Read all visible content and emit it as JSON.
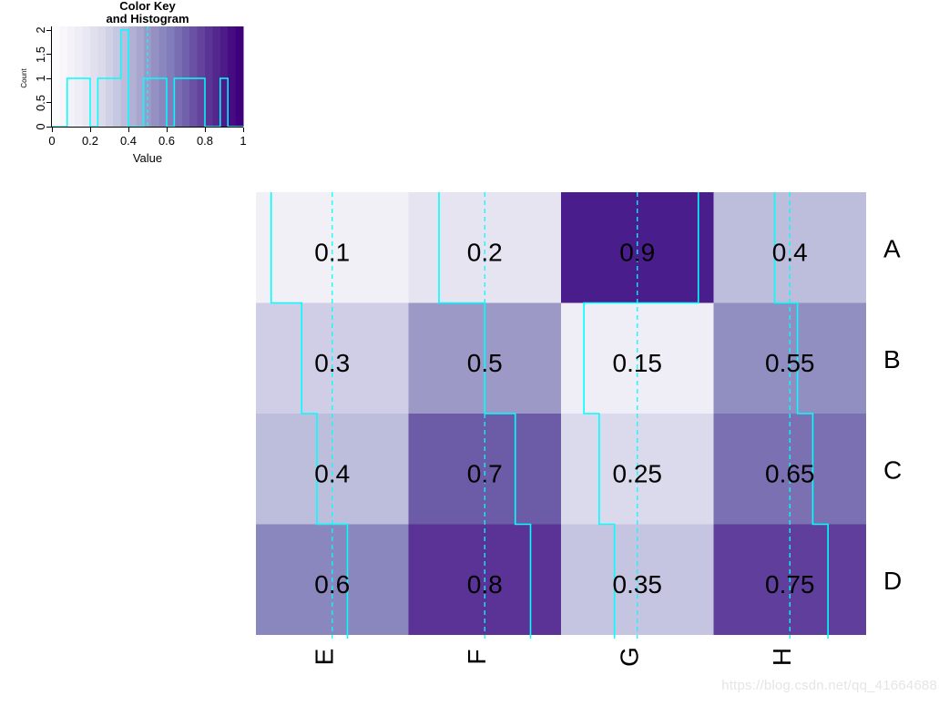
{
  "watermark": {
    "text": "https://blog.csdn.net/qq_41664688",
    "color": "#e5e5e7"
  },
  "color_key": {
    "title_line1": "Color Key",
    "title_line2": "and Histogram",
    "xlabel": "Value",
    "ylabel": "Count",
    "x_tick_labels": [
      "0",
      "0.2",
      "0.4",
      "0.6",
      "0.8",
      "1"
    ],
    "x_tick_values": [
      0,
      0.2,
      0.4,
      0.6,
      0.8,
      1
    ],
    "y_tick_labels": [
      "0",
      "0.5",
      "1",
      "1.5",
      "2"
    ],
    "y_tick_values": [
      0,
      0.5,
      1,
      1.5,
      2
    ],
    "axis_color": "#000000",
    "trace_color": "#00ffff",
    "vline_value": 0.5,
    "n_gradient_bands": 25,
    "palette_anchors": [
      "#FCFBFD",
      "#EFEDF5",
      "#DADAEB",
      "#BCBDDC",
      "#9E9AC8",
      "#807DBA",
      "#6A51A3",
      "#54278F",
      "#3F007D"
    ]
  },
  "heatmap": {
    "row_labels": [
      "A",
      "B",
      "C",
      "D"
    ],
    "col_labels": [
      "E",
      "F",
      "G",
      "H"
    ],
    "cell_labels": [
      [
        "0.1",
        "0.2",
        "0.9",
        "0.4"
      ],
      [
        "0.3",
        "0.5",
        "0.15",
        "0.55"
      ],
      [
        "0.4",
        "0.7",
        "0.25",
        "0.65"
      ],
      [
        "0.6",
        "0.8",
        "0.35",
        "0.75"
      ]
    ],
    "value_colors": {
      "0.1": "#F2F0F7",
      "0.15": "#EFEDF5",
      "0.2": "#E6E4F1",
      "0.25": "#DBDAEC",
      "0.3": "#CFCEE6",
      "0.35": "#C6C5E1",
      "0.4": "#BDBDDC",
      "0.5": "#9C99C7",
      "0.55": "#918EC2",
      "0.6": "#8A86BE",
      "0.65": "#7B70B1",
      "0.7": "#6C5BA7",
      "0.75": "#5F3F9B",
      "0.8": "#5B3295",
      "0.9": "#4A1D8C"
    },
    "label_color": "#000000",
    "trace_color": "#00ffff",
    "vline_value": 0.5
  },
  "chart_data": [
    {
      "type": "heatmap",
      "rows": [
        "A",
        "B",
        "C",
        "D"
      ],
      "columns": [
        "E",
        "F",
        "G",
        "H"
      ],
      "values": [
        [
          0.1,
          0.2,
          0.9,
          0.4
        ],
        [
          0.3,
          0.5,
          0.15,
          0.55
        ],
        [
          0.4,
          0.7,
          0.25,
          0.65
        ],
        [
          0.6,
          0.8,
          0.35,
          0.75
        ]
      ],
      "value_range": [
        0,
        1
      ],
      "colormap": "Purples light-to-dark (RColorBrewer)",
      "annotations": "each cell prints its numeric value in black",
      "trace": "solid cyan column trace drawn at x = value within each cell, stepped between rows",
      "vline": "dashed cyan vertical line at 0.5 of each column width",
      "row_labels_position": "right",
      "col_labels_position": "bottom, rotated 90deg counterclockwise"
    },
    {
      "type": "histogram",
      "title": "Color Key and Histogram",
      "xlabel": "Value",
      "ylabel": "Count",
      "xlim": [
        0,
        1
      ],
      "ylim": [
        0,
        2
      ],
      "x_ticks": [
        0,
        0.2,
        0.4,
        0.6,
        0.8,
        1
      ],
      "y_ticks": [
        0,
        0.5,
        1,
        1.5,
        2
      ],
      "bins": [
        {
          "x0": 0.08,
          "x1": 0.2,
          "count": 1
        },
        {
          "x0": 0.24,
          "x1": 0.36,
          "count": 1
        },
        {
          "x0": 0.36,
          "x1": 0.4,
          "count": 2
        },
        {
          "x0": 0.48,
          "x1": 0.6,
          "count": 1
        },
        {
          "x0": 0.64,
          "x1": 0.8,
          "count": 1
        },
        {
          "x0": 0.88,
          "x1": 0.92,
          "count": 1
        }
      ],
      "vline": 0.5,
      "background": "discrete 25-band Purples gradient across full plot",
      "legend": "none",
      "grid": false
    }
  ]
}
